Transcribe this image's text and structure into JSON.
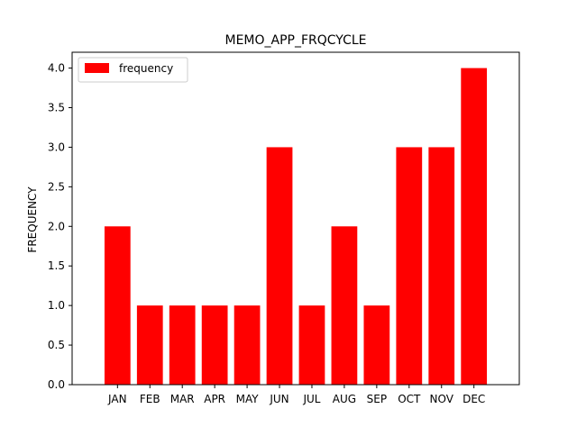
{
  "chart_data": {
    "type": "bar",
    "title": "MEMO_APP_FRQCYCLE",
    "xlabel": "",
    "ylabel": "FREQUENCY",
    "categories": [
      "JAN",
      "FEB",
      "MAR",
      "APR",
      "MAY",
      "JUN",
      "JUL",
      "AUG",
      "SEP",
      "OCT",
      "NOV",
      "DEC"
    ],
    "series": [
      {
        "name": "frequency",
        "color": "#ff0000",
        "values": [
          2,
          1,
          1,
          1,
          1,
          3,
          1,
          2,
          1,
          3,
          3,
          4
        ]
      }
    ],
    "ylim": [
      0,
      4.2
    ],
    "yticks": [
      "0.0",
      "0.5",
      "1.0",
      "1.5",
      "2.0",
      "2.5",
      "3.0",
      "3.5",
      "4.0"
    ],
    "grid": false,
    "legend": {
      "placement": "top-left"
    }
  }
}
